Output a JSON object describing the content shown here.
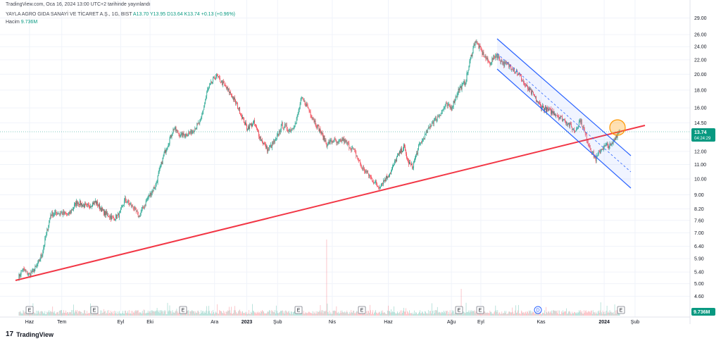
{
  "header": {
    "published": "TradingView.com, Oca 16, 2024 13:00 UTC+2 tarihinde yayınlandı",
    "symbol": "YAYLA AGRO GIDA SANAYİ VE TİCARET A.Ş., 1G, BIST",
    "ohlc": {
      "open": "A13.70",
      "high": "Y13.95",
      "low": "D13.64",
      "close": "K13.74"
    },
    "change": "+0.13 (+0.96%)",
    "volume_label": "Hacim",
    "volume_value": "9.736M"
  },
  "price_badge": {
    "price": "13.74",
    "countdown": "04:24:29"
  },
  "volume_badge": "9.736M",
  "footer": {
    "brand": "TradingView",
    "logo": "17"
  },
  "colors": {
    "up": "#089981",
    "down": "#f23645",
    "trendline": "#f23645",
    "channel": "#2962ff",
    "highlight": "#ff9800"
  },
  "event_markers": [
    "E",
    "E",
    "E",
    "E",
    "E",
    "E",
    "E",
    "D",
    "E"
  ],
  "chart_data": {
    "type": "candlestick",
    "y_scale": "log",
    "y_ticks": [
      "29.00",
      "26.00",
      "24.00",
      "22.00",
      "20.00",
      "18.00",
      "16.00",
      "14.50",
      "13.00",
      "12.00",
      "11.00",
      "10.00",
      "9.00",
      "8.20",
      "7.60",
      "7.00",
      "6.40",
      "5.90",
      "5.40",
      "5.00",
      "4.60"
    ],
    "x_ticks": [
      "Haz",
      "Tem",
      "Eyl",
      "Eki",
      "Ara",
      "2023",
      "Şub",
      "Nis",
      "Haz",
      "Ağu",
      "Eyl",
      "Kas",
      "2024",
      "Şub"
    ],
    "x_tick_bars": [
      16,
      62,
      146,
      188,
      280,
      326,
      370,
      448,
      528,
      618,
      660,
      746,
      836,
      880
    ],
    "bars": 858,
    "anchors": [
      [
        0,
        5.2
      ],
      [
        6,
        5.5
      ],
      [
        16,
        5.3
      ],
      [
        26,
        5.6
      ],
      [
        34,
        6.1
      ],
      [
        46,
        7.9
      ],
      [
        56,
        8.0
      ],
      [
        72,
        7.9
      ],
      [
        84,
        8.6
      ],
      [
        98,
        8.3
      ],
      [
        110,
        8.6
      ],
      [
        122,
        8.0
      ],
      [
        136,
        7.7
      ],
      [
        144,
        7.9
      ],
      [
        152,
        8.7
      ],
      [
        164,
        8.3
      ],
      [
        172,
        7.8
      ],
      [
        186,
        8.9
      ],
      [
        196,
        9.6
      ],
      [
        208,
        11.8
      ],
      [
        222,
        14.0
      ],
      [
        232,
        13.3
      ],
      [
        246,
        13.6
      ],
      [
        260,
        14.6
      ],
      [
        270,
        18.0
      ],
      [
        282,
        19.8
      ],
      [
        292,
        18.8
      ],
      [
        304,
        17.5
      ],
      [
        314,
        16.0
      ],
      [
        326,
        14.0
      ],
      [
        336,
        14.5
      ],
      [
        346,
        13.0
      ],
      [
        356,
        12.1
      ],
      [
        368,
        13.0
      ],
      [
        376,
        14.3
      ],
      [
        388,
        13.8
      ],
      [
        396,
        14.5
      ],
      [
        404,
        17.0
      ],
      [
        412,
        16.2
      ],
      [
        420,
        15.0
      ],
      [
        430,
        13.8
      ],
      [
        440,
        12.6
      ],
      [
        450,
        12.9
      ],
      [
        456,
        12.6
      ],
      [
        462,
        13.0
      ],
      [
        470,
        12.6
      ],
      [
        480,
        12.0
      ],
      [
        490,
        10.8
      ],
      [
        498,
        10.4
      ],
      [
        506,
        9.9
      ],
      [
        514,
        9.5
      ],
      [
        522,
        9.9
      ],
      [
        532,
        10.5
      ],
      [
        540,
        11.5
      ],
      [
        550,
        12.4
      ],
      [
        556,
        11.2
      ],
      [
        562,
        10.8
      ],
      [
        572,
        12.5
      ],
      [
        580,
        13.3
      ],
      [
        590,
        14.5
      ],
      [
        600,
        15.2
      ],
      [
        610,
        16.3
      ],
      [
        618,
        16.0
      ],
      [
        628,
        18.0
      ],
      [
        638,
        19.0
      ],
      [
        646,
        22.5
      ],
      [
        652,
        25.0
      ],
      [
        662,
        23.0
      ],
      [
        672,
        21.5
      ],
      [
        682,
        22.8
      ],
      [
        692,
        21.5
      ],
      [
        704,
        21.0
      ],
      [
        714,
        20.0
      ],
      [
        724,
        18.5
      ],
      [
        734,
        17.5
      ],
      [
        744,
        16.3
      ],
      [
        754,
        15.8
      ],
      [
        764,
        15.5
      ],
      [
        774,
        15.0
      ],
      [
        784,
        14.5
      ],
      [
        794,
        13.7
      ],
      [
        802,
        14.8
      ],
      [
        810,
        13.2
      ],
      [
        818,
        12.0
      ],
      [
        824,
        11.4
      ],
      [
        832,
        12.2
      ],
      [
        840,
        12.5
      ],
      [
        846,
        12.4
      ],
      [
        852,
        13.2
      ],
      [
        858,
        13.74
      ]
    ],
    "candles_note": "",
    "annotations": []
  }
}
